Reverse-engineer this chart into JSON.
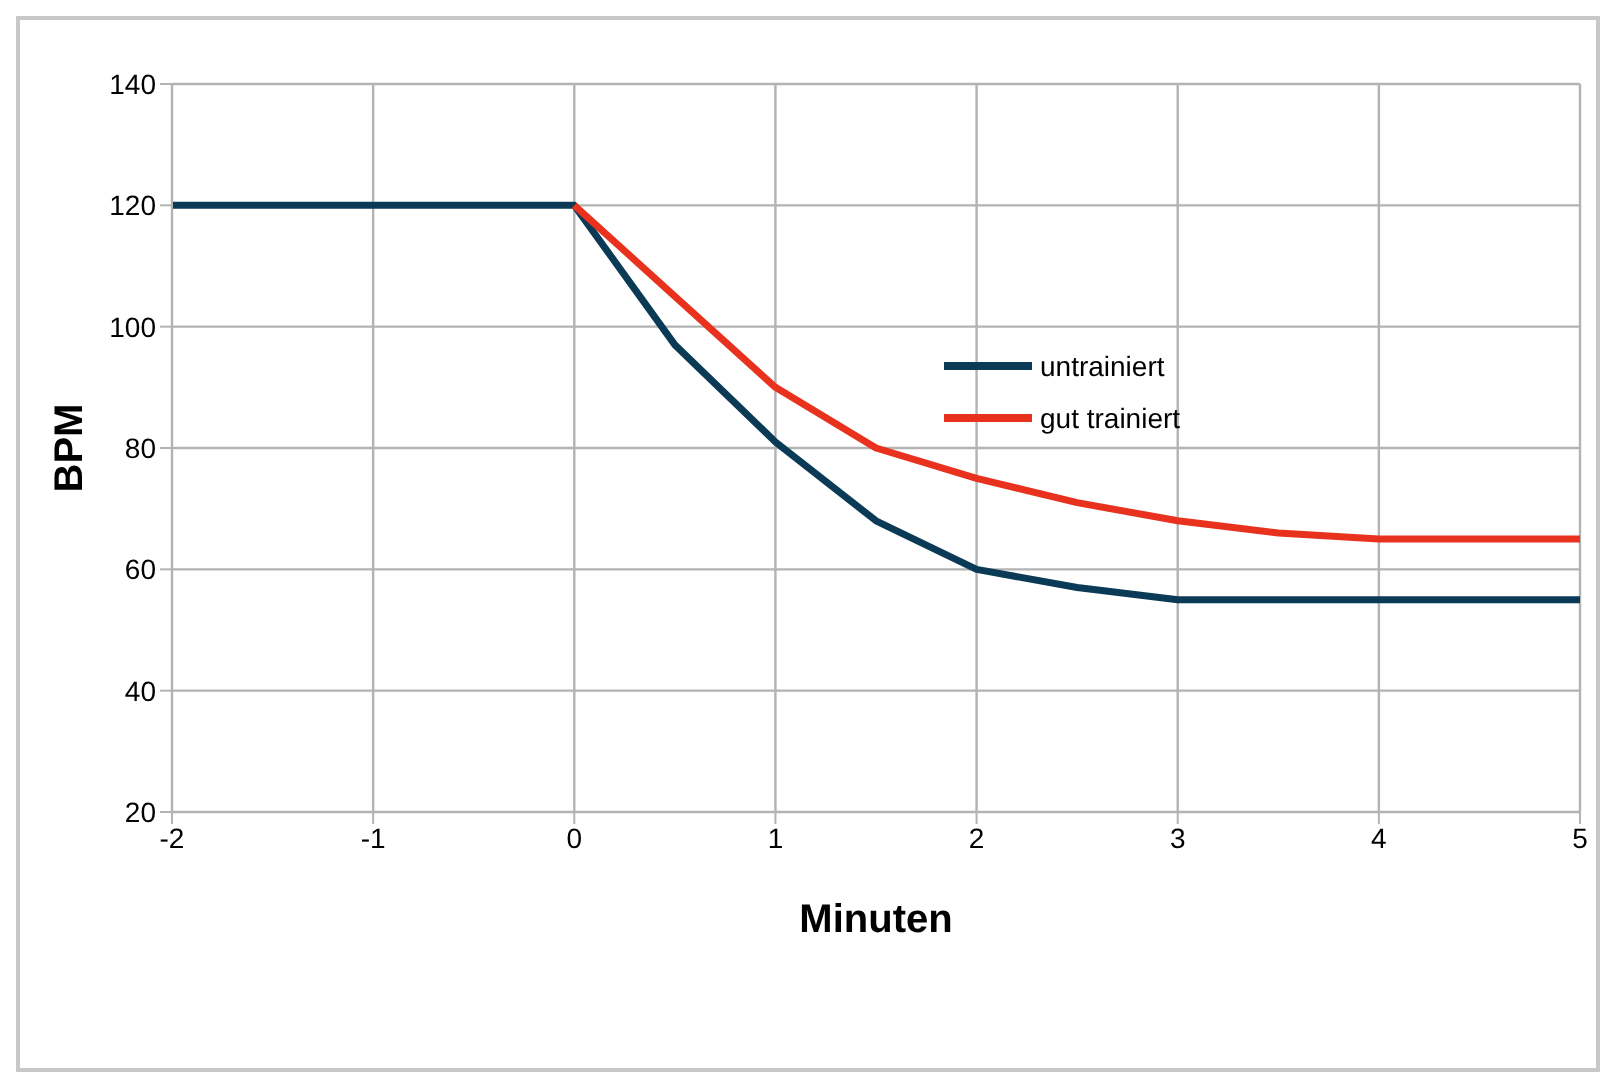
{
  "chart_data": {
    "type": "line",
    "xlabel": "Minuten",
    "ylabel": "BPM",
    "xlim": [
      -2,
      5
    ],
    "xticks": [
      -2,
      -1,
      0,
      1,
      2,
      3,
      4,
      5
    ],
    "ylim": [
      20,
      140
    ],
    "yticks": [
      20,
      40,
      60,
      80,
      100,
      120,
      140
    ],
    "grid": true,
    "legend": "right",
    "marker": "none",
    "line_style": "solid",
    "series": [
      {
        "name": "untrainiert",
        "color": "#0b3a56",
        "x": [
          -2,
          0,
          0.5,
          1,
          1.5,
          2,
          2.5,
          3,
          4,
          5
        ],
        "values": [
          120,
          120,
          97,
          81,
          68,
          60,
          57,
          55,
          55,
          55
        ]
      },
      {
        "name": "gut trainiert",
        "color": "#e8321e",
        "x": [
          0,
          0.5,
          1,
          1.5,
          2,
          2.5,
          3,
          3.5,
          4,
          5
        ],
        "values": [
          120,
          105,
          90,
          80,
          75,
          71,
          68,
          66,
          65,
          65
        ]
      }
    ]
  }
}
